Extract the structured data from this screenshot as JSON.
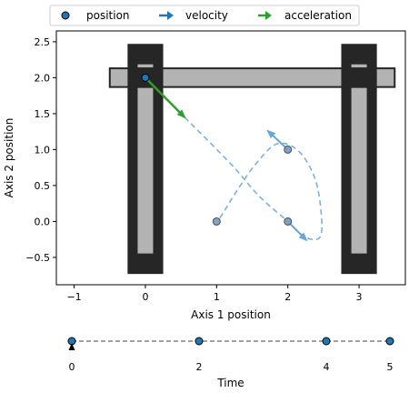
{
  "legend": {
    "items": [
      {
        "label": "position",
        "marker": "circle",
        "color": "#1f77b4"
      },
      {
        "label": "velocity",
        "marker": "arrow",
        "color": "#1f77b4"
      },
      {
        "label": "acceleration",
        "marker": "arrow",
        "color": "#2ca02c"
      }
    ]
  },
  "colors": {
    "position": "#1f77b4",
    "velocity": "#1f77b4",
    "acceleration": "#2ca02c",
    "trajectory": "#7fb1d5",
    "structure_fill": "#b3b3b3",
    "structure_edge": "#262626",
    "timeline_line": "#808080"
  },
  "chart_data": [
    {
      "type": "scatter",
      "title": "",
      "xlabel": "Axis 1 position",
      "ylabel": "Axis 2 position",
      "xlim": [
        -1.25,
        3.65
      ],
      "ylim": [
        -0.88,
        2.65
      ],
      "xticks": [
        -1,
        0,
        1,
        2,
        3
      ],
      "xtick_labels": [
        "−1",
        "0",
        "1",
        "2",
        "3"
      ],
      "yticks": [
        -0.5,
        0.0,
        0.5,
        1.0,
        1.5,
        2.0,
        2.5
      ],
      "ytick_labels": [
        "−0.5",
        "0.0",
        "0.5",
        "1.0",
        "1.5",
        "2.0",
        "2.5"
      ],
      "grid": false,
      "legend_position": "top, above plot",
      "structure": {
        "left_rail": {
          "x_range": [
            -0.25,
            0.25
          ],
          "y_range": [
            -0.73,
            2.47
          ],
          "x_center": 0.0
        },
        "right_rail": {
          "x_range": [
            2.75,
            3.25
          ],
          "y_range": [
            -0.73,
            2.47
          ],
          "x_center": 3.0
        },
        "gantry": {
          "x_range": [
            -0.5,
            3.5
          ],
          "y_range": [
            1.87,
            2.13
          ]
        },
        "carriage": {
          "x_center": 0.0,
          "y_center": 2.0
        }
      },
      "positions": [
        {
          "x": 0,
          "y": 2.0
        },
        {
          "x": 1,
          "y": 0.0
        },
        {
          "x": 2,
          "y": 1.0
        },
        {
          "x": 2,
          "y": 0.0
        }
      ],
      "trajectory": [
        {
          "x": 0.55,
          "y": 1.45
        },
        {
          "x": 1.2,
          "y": 0.8
        },
        {
          "x": 1.6,
          "y": 0.35
        },
        {
          "x": 2.0,
          "y": 0.0
        },
        {
          "x": 2.25,
          "y": -0.22
        },
        {
          "x": 2.45,
          "y": -0.22
        },
        {
          "x": 2.47,
          "y": 0.1
        },
        {
          "x": 2.38,
          "y": 0.6
        },
        {
          "x": 2.15,
          "y": 0.98
        },
        {
          "x": 1.85,
          "y": 1.08
        },
        {
          "x": 1.55,
          "y": 0.8
        },
        {
          "x": 1.28,
          "y": 0.42
        },
        {
          "x": 1.08,
          "y": 0.1
        },
        {
          "x": 1.0,
          "y": 0.0
        }
      ],
      "velocity_arrows": [
        {
          "x": 2.0,
          "y": 1.0,
          "dx": -0.28,
          "dy": 0.26
        },
        {
          "x": 2.0,
          "y": 0.0,
          "dx": 0.26,
          "dy": -0.26
        }
      ],
      "acceleration_arrows": [
        {
          "x": 0.0,
          "y": 2.0,
          "dx": 0.55,
          "dy": -0.55
        }
      ]
    },
    {
      "type": "timeline",
      "xlabel": "Time",
      "xlim": [
        0,
        5
      ],
      "xticks": [
        0,
        2,
        4,
        5
      ],
      "xtick_labels": [
        "0",
        "2",
        "4",
        "5"
      ],
      "events": [
        0,
        2,
        4,
        5
      ],
      "current_time": 0
    }
  ]
}
